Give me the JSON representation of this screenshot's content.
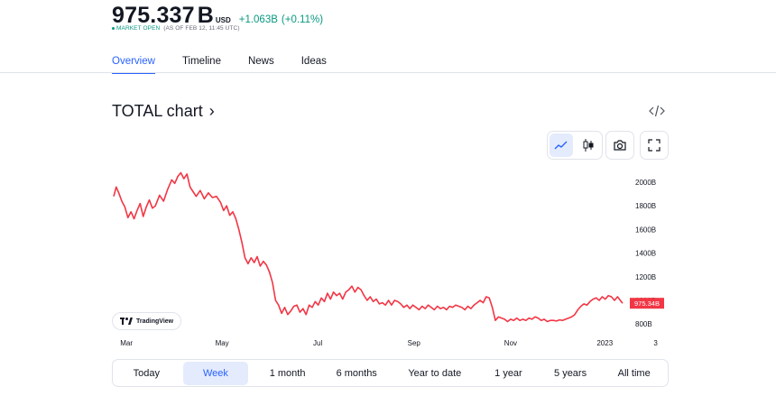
{
  "header": {
    "price": "975.337",
    "unit": "B",
    "currency": "USD",
    "change": "+1.063B",
    "change_pct": "(+0.11%)",
    "status": "MARKET OPEN",
    "status_time": "(AS OF FEB 12, 11:45 UTC)"
  },
  "tabs": [
    {
      "label": "Overview",
      "active": true
    },
    {
      "label": "Timeline",
      "active": false
    },
    {
      "label": "News",
      "active": false
    },
    {
      "label": "Ideas",
      "active": false
    }
  ],
  "chart_title": "TOTAL chart",
  "chart_title_chevron": "›",
  "toolbar": {
    "line_icon": "line-chart-icon",
    "candle_icon": "candlestick-icon",
    "camera_icon": "camera-icon",
    "fullscreen_icon": "fullscreen-icon",
    "embed_icon": "code-embed-icon"
  },
  "watermark": "TradingView",
  "ranges": [
    {
      "label": "Today",
      "active": false
    },
    {
      "label": "Week",
      "active": true
    },
    {
      "label": "1 month",
      "active": false
    },
    {
      "label": "6 months",
      "active": false
    },
    {
      "label": "Year to date",
      "active": false
    },
    {
      "label": "1 year",
      "active": false
    },
    {
      "label": "5 years",
      "active": false
    },
    {
      "label": "All time",
      "active": false
    }
  ],
  "colors": {
    "line": "#f23645",
    "positive": "#089981",
    "accent": "#2962ff"
  },
  "chart_data": {
    "type": "line",
    "title": "TOTAL chart",
    "xlabel": "",
    "ylabel": "",
    "y_unit": "B",
    "ylim": [
      740,
      2130
    ],
    "yticks": [
      800,
      1000,
      1200,
      1400,
      1600,
      1800,
      2000
    ],
    "ytick_labels": [
      "800B",
      "1000B",
      "1200B",
      "1400B",
      "1600B",
      "1800B",
      "2000B"
    ],
    "x_ticks": [
      {
        "label": "Mar",
        "t": 0.025
      },
      {
        "label": "May",
        "t": 0.213
      },
      {
        "label": "Jul",
        "t": 0.401
      },
      {
        "label": "Sep",
        "t": 0.59
      },
      {
        "label": "Nov",
        "t": 0.78
      },
      {
        "label": "2023",
        "t": 0.965
      },
      {
        "label": "3",
        "t": 1.065
      }
    ],
    "last_value_label": "975.34B",
    "last_value": 975.34,
    "grid": false,
    "series": [
      {
        "values": [
          [
            0.0,
            1880
          ],
          [
            0.005,
            1960
          ],
          [
            0.01,
            1910
          ],
          [
            0.016,
            1840
          ],
          [
            0.022,
            1790
          ],
          [
            0.028,
            1700
          ],
          [
            0.034,
            1750
          ],
          [
            0.04,
            1690
          ],
          [
            0.046,
            1760
          ],
          [
            0.052,
            1820
          ],
          [
            0.058,
            1710
          ],
          [
            0.064,
            1790
          ],
          [
            0.07,
            1850
          ],
          [
            0.076,
            1780
          ],
          [
            0.082,
            1800
          ],
          [
            0.09,
            1890
          ],
          [
            0.098,
            1840
          ],
          [
            0.106,
            1940
          ],
          [
            0.114,
            2020
          ],
          [
            0.12,
            1990
          ],
          [
            0.126,
            2050
          ],
          [
            0.132,
            2080
          ],
          [
            0.138,
            2030
          ],
          [
            0.144,
            2070
          ],
          [
            0.15,
            1960
          ],
          [
            0.156,
            1920
          ],
          [
            0.162,
            1880
          ],
          [
            0.17,
            1930
          ],
          [
            0.178,
            1860
          ],
          [
            0.186,
            1910
          ],
          [
            0.194,
            1870
          ],
          [
            0.202,
            1880
          ],
          [
            0.21,
            1830
          ],
          [
            0.216,
            1760
          ],
          [
            0.222,
            1800
          ],
          [
            0.228,
            1720
          ],
          [
            0.234,
            1750
          ],
          [
            0.24,
            1690
          ],
          [
            0.246,
            1600
          ],
          [
            0.252,
            1490
          ],
          [
            0.258,
            1360
          ],
          [
            0.264,
            1310
          ],
          [
            0.27,
            1360
          ],
          [
            0.276,
            1320
          ],
          [
            0.282,
            1370
          ],
          [
            0.288,
            1290
          ],
          [
            0.294,
            1330
          ],
          [
            0.3,
            1300
          ],
          [
            0.306,
            1240
          ],
          [
            0.312,
            1150
          ],
          [
            0.318,
            1000
          ],
          [
            0.324,
            960
          ],
          [
            0.33,
            890
          ],
          [
            0.336,
            940
          ],
          [
            0.342,
            880
          ],
          [
            0.348,
            910
          ],
          [
            0.354,
            950
          ],
          [
            0.36,
            960
          ],
          [
            0.366,
            900
          ],
          [
            0.372,
            930
          ],
          [
            0.378,
            880
          ],
          [
            0.384,
            960
          ],
          [
            0.39,
            940
          ],
          [
            0.396,
            990
          ],
          [
            0.402,
            960
          ],
          [
            0.408,
            1020
          ],
          [
            0.414,
            990
          ],
          [
            0.42,
            1060
          ],
          [
            0.426,
            1010
          ],
          [
            0.432,
            1070
          ],
          [
            0.438,
            1040
          ],
          [
            0.444,
            1060
          ],
          [
            0.45,
            1010
          ],
          [
            0.456,
            1070
          ],
          [
            0.462,
            1090
          ],
          [
            0.468,
            1120
          ],
          [
            0.474,
            1070
          ],
          [
            0.48,
            1110
          ],
          [
            0.486,
            1090
          ],
          [
            0.492,
            1040
          ],
          [
            0.498,
            1000
          ],
          [
            0.504,
            1030
          ],
          [
            0.51,
            990
          ],
          [
            0.516,
            1010
          ],
          [
            0.522,
            970
          ],
          [
            0.528,
            980
          ],
          [
            0.534,
            960
          ],
          [
            0.54,
            1000
          ],
          [
            0.546,
            960
          ],
          [
            0.552,
            1000
          ],
          [
            0.558,
            990
          ],
          [
            0.564,
            970
          ],
          [
            0.57,
            940
          ],
          [
            0.576,
            960
          ],
          [
            0.582,
            930
          ],
          [
            0.588,
            960
          ],
          [
            0.594,
            940
          ],
          [
            0.6,
            920
          ],
          [
            0.606,
            950
          ],
          [
            0.612,
            930
          ],
          [
            0.618,
            960
          ],
          [
            0.624,
            940
          ],
          [
            0.63,
            920
          ],
          [
            0.636,
            950
          ],
          [
            0.642,
            930
          ],
          [
            0.648,
            940
          ],
          [
            0.654,
            920
          ],
          [
            0.66,
            950
          ],
          [
            0.666,
            940
          ],
          [
            0.672,
            960
          ],
          [
            0.678,
            950
          ],
          [
            0.684,
            940
          ],
          [
            0.69,
            920
          ],
          [
            0.696,
            950
          ],
          [
            0.702,
            930
          ],
          [
            0.708,
            960
          ],
          [
            0.714,
            980
          ],
          [
            0.72,
            1000
          ],
          [
            0.726,
            980
          ],
          [
            0.732,
            1030
          ],
          [
            0.738,
            1020
          ],
          [
            0.744,
            940
          ],
          [
            0.75,
            830
          ],
          [
            0.756,
            860
          ],
          [
            0.762,
            850
          ],
          [
            0.768,
            840
          ],
          [
            0.774,
            820
          ],
          [
            0.78,
            840
          ],
          [
            0.786,
            830
          ],
          [
            0.792,
            850
          ],
          [
            0.798,
            830
          ],
          [
            0.804,
            840
          ],
          [
            0.81,
            830
          ],
          [
            0.816,
            850
          ],
          [
            0.822,
            840
          ],
          [
            0.828,
            860
          ],
          [
            0.834,
            850
          ],
          [
            0.84,
            830
          ],
          [
            0.846,
            840
          ],
          [
            0.852,
            820
          ],
          [
            0.858,
            830
          ],
          [
            0.864,
            830
          ],
          [
            0.87,
            825
          ],
          [
            0.876,
            835
          ],
          [
            0.882,
            830
          ],
          [
            0.888,
            840
          ],
          [
            0.894,
            850
          ],
          [
            0.9,
            860
          ],
          [
            0.906,
            880
          ],
          [
            0.912,
            920
          ],
          [
            0.918,
            950
          ],
          [
            0.924,
            970
          ],
          [
            0.93,
            960
          ],
          [
            0.936,
            990
          ],
          [
            0.942,
            1010
          ],
          [
            0.948,
            1020
          ],
          [
            0.954,
            1000
          ],
          [
            0.96,
            1030
          ],
          [
            0.966,
            1010
          ],
          [
            0.972,
            1040
          ],
          [
            0.978,
            1030
          ],
          [
            0.984,
            1000
          ],
          [
            0.99,
            1030
          ],
          [
            1.0,
            975.34
          ]
        ]
      }
    ]
  }
}
